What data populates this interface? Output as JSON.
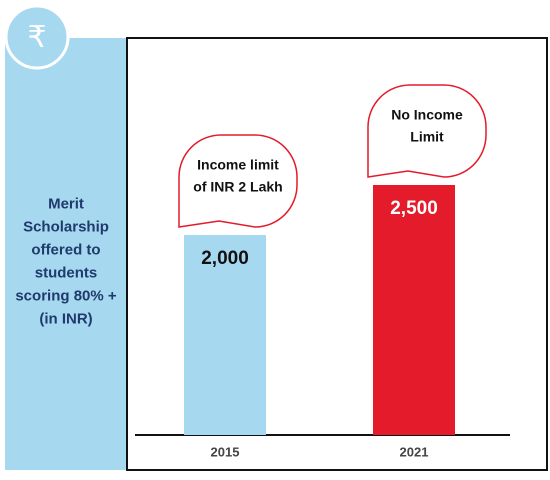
{
  "chart_data": {
    "type": "bar",
    "icon": "₹",
    "side_label": [
      "Merit",
      "Scholarship",
      "offered to",
      "students",
      "scoring 80% +",
      "(in INR)"
    ],
    "categories": [
      "2015",
      "2021"
    ],
    "values": [
      2000,
      2500
    ],
    "value_labels": [
      "2,000",
      "2,500"
    ],
    "colors": [
      "#a6d8f0",
      "#e31b2b"
    ],
    "annotations": [
      [
        "Income limit",
        "of INR 2 Lakh"
      ],
      [
        "No Income",
        "Limit"
      ]
    ]
  }
}
